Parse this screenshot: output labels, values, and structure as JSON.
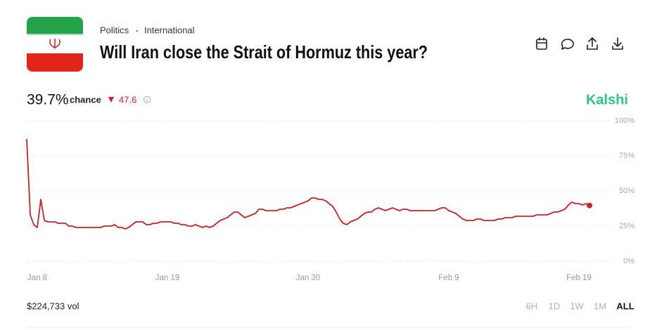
{
  "header": {
    "category": "Politics",
    "subcategory": "International",
    "title": "Will Iran close the Strait of Hormuz this year?"
  },
  "summary": {
    "chance": "39.7%",
    "chance_label": "chance",
    "change": 47.6,
    "brand": "Kalshi"
  },
  "chart_data": {
    "type": "line",
    "color": "#c8232c",
    "categories": [
      null,
      null,
      null,
      "Jan 8",
      null,
      null,
      null,
      null,
      null,
      null,
      null,
      null,
      null,
      null,
      null,
      null,
      null,
      null,
      null,
      null,
      null,
      null,
      null,
      null,
      null,
      null,
      null,
      null,
      null,
      null,
      null,
      null,
      null,
      null,
      null,
      null,
      null,
      null,
      null,
      null,
      "Jan 19",
      null,
      null,
      null,
      null,
      null,
      null,
      null,
      null,
      null,
      null,
      null,
      null,
      null,
      null,
      null,
      null,
      null,
      null,
      null,
      null,
      null,
      null,
      null,
      null,
      null,
      null,
      null,
      null,
      null,
      null,
      null,
      null,
      null,
      null,
      null,
      null,
      null,
      null,
      null,
      "Jan 30",
      null,
      null,
      null,
      null,
      null,
      null,
      null,
      null,
      null,
      null,
      null,
      null,
      null,
      null,
      null,
      null,
      null,
      null,
      null,
      null,
      null,
      null,
      null,
      null,
      null,
      null,
      null,
      null,
      null,
      null,
      null,
      null,
      null,
      null,
      null,
      null,
      null,
      null,
      null,
      "Feb 9",
      null,
      null,
      null,
      null,
      null,
      null,
      null,
      null,
      null,
      null,
      null,
      null,
      null,
      null,
      null,
      null,
      null,
      null,
      null,
      null,
      null,
      null,
      null,
      null,
      null,
      null,
      null,
      null,
      null,
      null,
      null,
      null,
      null,
      null,
      null,
      null,
      "Feb 19",
      null,
      null,
      null
    ],
    "values": [
      87,
      33,
      26,
      24,
      44,
      29,
      28,
      28,
      28,
      27,
      27,
      27,
      25,
      25,
      24,
      24,
      24,
      24,
      24,
      24,
      24,
      24,
      25,
      25,
      25,
      26,
      24,
      24,
      23,
      24,
      26,
      28,
      28,
      28,
      26,
      26,
      27,
      27,
      28,
      28,
      28,
      28,
      27,
      27,
      26,
      26,
      25,
      25,
      26,
      25,
      24,
      25,
      24,
      25,
      27,
      29,
      30,
      31,
      33,
      35,
      35,
      33,
      31,
      32,
      33,
      34,
      37,
      37,
      36,
      36,
      36,
      36,
      37,
      37,
      38,
      38,
      39,
      40,
      41,
      42,
      43,
      45,
      45,
      44,
      44,
      43,
      41,
      39,
      35,
      30,
      27,
      26,
      28,
      29,
      30,
      32,
      34,
      35,
      35,
      37,
      38,
      37,
      36,
      37,
      38,
      37,
      36,
      37,
      37,
      36,
      36,
      36,
      36,
      36,
      36,
      36,
      36,
      37,
      38,
      38,
      36,
      35,
      34,
      32,
      30,
      29,
      29,
      29,
      30,
      30,
      29,
      29,
      29,
      29,
      30,
      30,
      31,
      31,
      31,
      32,
      32,
      32,
      32,
      32,
      32,
      33,
      33,
      33,
      33,
      34,
      35,
      35,
      36,
      37,
      40,
      42,
      41,
      41,
      40,
      41,
      39.7
    ],
    "ylim": [
      0,
      100
    ],
    "yticks": [
      {
        "value": 0,
        "label": "0%"
      },
      {
        "value": 25,
        "label": "25%"
      },
      {
        "value": 50,
        "label": "50%"
      },
      {
        "value": 75,
        "label": "75%"
      },
      {
        "value": 100,
        "label": "100%"
      }
    ],
    "grid": true
  },
  "footer": {
    "volume": "$224,733 vol",
    "ranges": [
      "6H",
      "1D",
      "1W",
      "1M",
      "ALL"
    ],
    "selected_range": "ALL"
  }
}
